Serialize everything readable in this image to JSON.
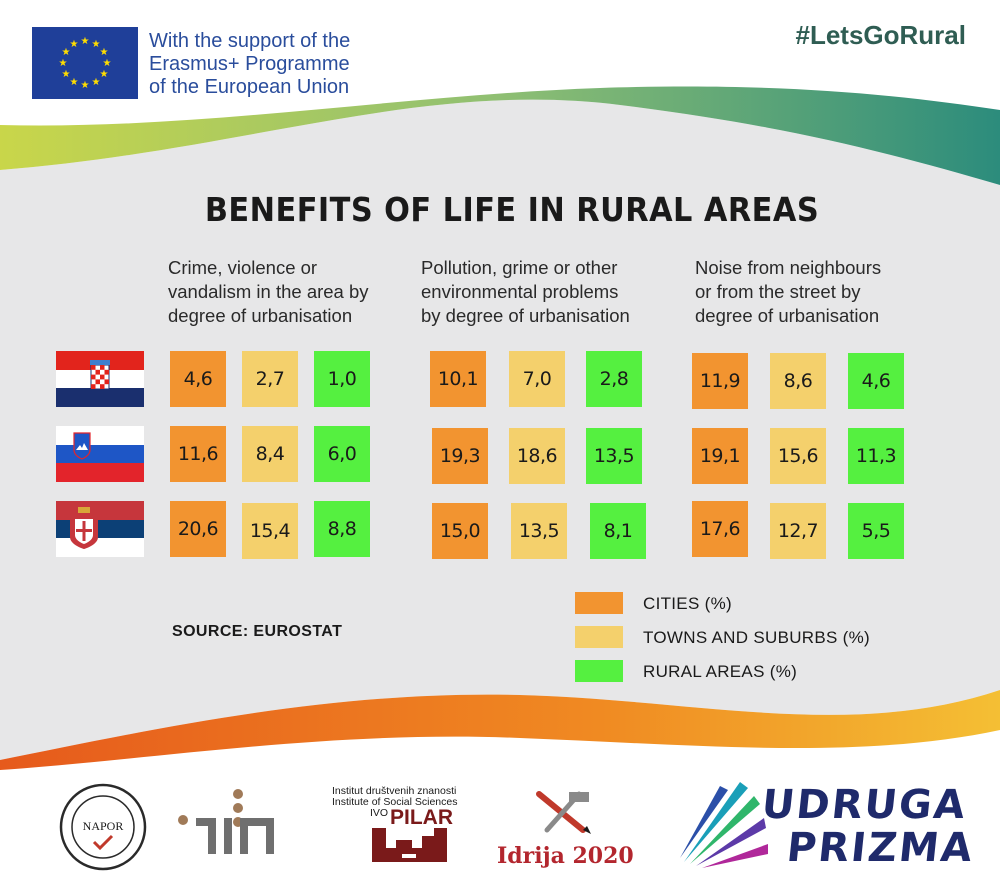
{
  "header": {
    "support_line1": "With the support of the",
    "support_line2": "Erasmus+ Programme",
    "support_line3": "of the European Union",
    "hashtag": "#LetsGoRural"
  },
  "title": "BENEFITS OF LIFE  IN RURAL AREAS",
  "columns": [
    {
      "lines": [
        "Crime, violence or",
        "vandalism in the area by",
        "degree of urbanisation"
      ]
    },
    {
      "lines": [
        "Pollution, grime or other",
        "environmental problems",
        "by degree of urbanisation"
      ]
    },
    {
      "lines": [
        "Noise from neighbours",
        "or from the street by",
        "degree of urbanisation"
      ]
    }
  ],
  "countries": [
    {
      "flag": "croatia-flag",
      "values": [
        [
          "4,6",
          "2,7",
          "1,0"
        ],
        [
          "10,1",
          "7,0",
          "2,8"
        ],
        [
          "11,9",
          "8,6",
          "4,6"
        ]
      ]
    },
    {
      "flag": "slovenia-flag",
      "values": [
        [
          "11,6",
          "8,4",
          "6,0"
        ],
        [
          "19,3",
          "18,6",
          "13,5"
        ],
        [
          "19,1",
          "15,6",
          "11,3"
        ]
      ]
    },
    {
      "flag": "serbia-flag",
      "values": [
        [
          "20,6",
          "15,4",
          "8,8"
        ],
        [
          "15,0",
          "13,5",
          "8,1"
        ],
        [
          "17,6",
          "12,7",
          "5,5"
        ]
      ]
    }
  ],
  "legend": [
    {
      "label": "CITIES (%)",
      "color": "#f29430"
    },
    {
      "label": "TOWNS AND SUBURBS (%)",
      "color": "#f4d06c"
    },
    {
      "label": "RURAL AREAS (%)",
      "color": "#55f040"
    }
  ],
  "source": "SOURCE: EUROSTAT",
  "colors": {
    "background_panel": "#e7e7e8",
    "eu_blue": "#1f3f99",
    "eu_star": "#ffdd00",
    "wave_top_start": "#c5d44a",
    "wave_top_end": "#2e8f7d",
    "wave_bottom_start": "#e8621c",
    "wave_bottom_end": "#f2b930"
  },
  "logos": {
    "napor": "NAPOR",
    "pilar_line1": "Institut društvenih znanosti",
    "pilar_line2": "Institute of Social Sciences",
    "pilar_line3": "IVO",
    "pilar_name": "PILAR",
    "idrija": "Idrija 2020",
    "prizma_line1": "UDRUGA",
    "prizma_line2": "PRIZMA"
  }
}
